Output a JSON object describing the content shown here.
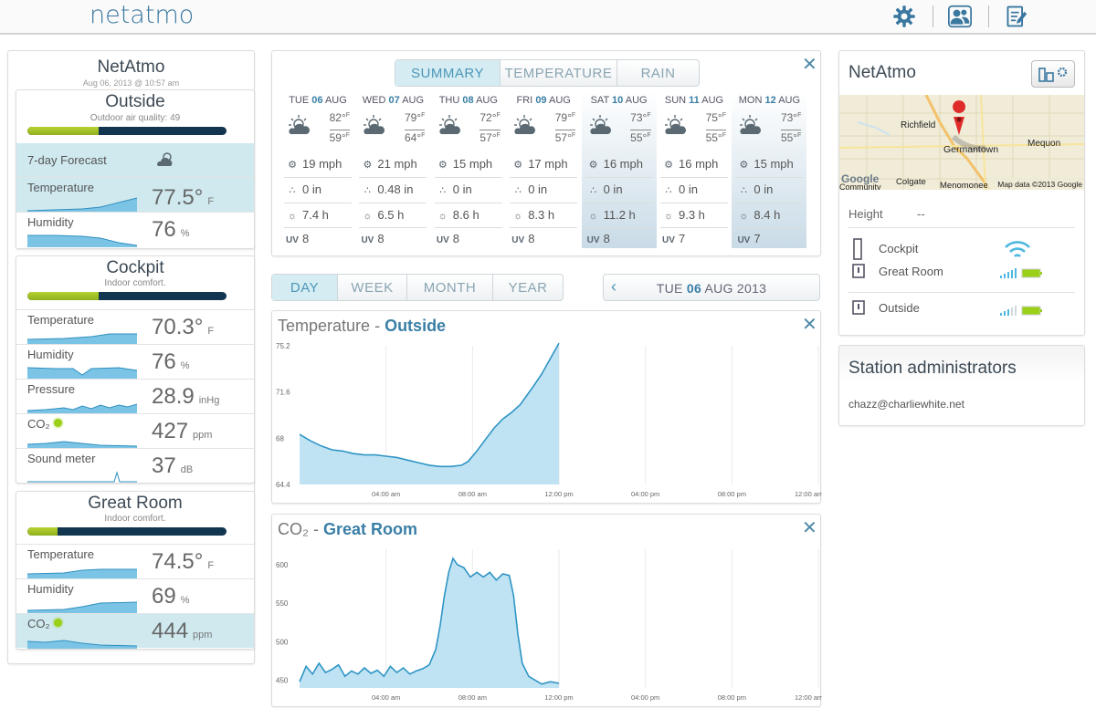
{
  "app": {
    "logo": "netatmo"
  },
  "toolbar": {
    "icons": [
      "gear-icon",
      "users-icon",
      "edit-icon"
    ]
  },
  "station": {
    "name": "NetAtmo",
    "timestamp": "Aug 06, 2013 @ 10:57 am"
  },
  "outside": {
    "title": "Outside",
    "subtitle": "Outdoor air quality: 49",
    "quality_fraction": 0.36,
    "forecast_label": "7-day Forecast",
    "rows": [
      {
        "label": "Temperature",
        "value": "77.5°",
        "unit": "F"
      },
      {
        "label": "Humidity",
        "value": "76",
        "unit": "%"
      }
    ]
  },
  "cockpit": {
    "title": "Cockpit",
    "subtitle": "Indoor comfort.",
    "quality_fraction": 0.36,
    "rows": [
      {
        "label": "Temperature",
        "value": "70.3°",
        "unit": "F"
      },
      {
        "label": "Humidity",
        "value": "76",
        "unit": "%"
      },
      {
        "label": "Pressure",
        "value": "28.9",
        "unit": "inHg"
      },
      {
        "label": "CO₂",
        "value": "427",
        "unit": "ppm"
      },
      {
        "label": "Sound meter",
        "value": "37",
        "unit": "dB"
      }
    ]
  },
  "greatroom": {
    "title": "Great Room",
    "subtitle": "Indoor comfort.",
    "quality_fraction": 0.15,
    "rows": [
      {
        "label": "Temperature",
        "value": "74.5°",
        "unit": "F"
      },
      {
        "label": "Humidity",
        "value": "69",
        "unit": "%"
      },
      {
        "label": "CO₂",
        "value": "444",
        "unit": "ppm"
      }
    ]
  },
  "forecast": {
    "tabs": [
      "SUMMARY",
      "TEMPERATURE",
      "RAIN"
    ],
    "active_tab": "SUMMARY",
    "days": [
      {
        "dow": "TUE",
        "num": "06",
        "mon": "AUG",
        "hi": "82°",
        "lo": "59°",
        "unit": "F",
        "wind": "19 mph",
        "rain": "0 in",
        "sun": "7.4 h",
        "uv": "8",
        "weekend": false
      },
      {
        "dow": "WED",
        "num": "07",
        "mon": "AUG",
        "hi": "79°",
        "lo": "64°",
        "unit": "F",
        "wind": "21 mph",
        "rain": "0.48 in",
        "sun": "6.5 h",
        "uv": "8",
        "weekend": false
      },
      {
        "dow": "THU",
        "num": "08",
        "mon": "AUG",
        "hi": "72°",
        "lo": "57°",
        "unit": "F",
        "wind": "15 mph",
        "rain": "0 in",
        "sun": "8.6 h",
        "uv": "8",
        "weekend": false
      },
      {
        "dow": "FRI",
        "num": "09",
        "mon": "AUG",
        "hi": "79°",
        "lo": "57°",
        "unit": "F",
        "wind": "17 mph",
        "rain": "0 in",
        "sun": "8.3 h",
        "uv": "8",
        "weekend": false
      },
      {
        "dow": "SAT",
        "num": "10",
        "mon": "AUG",
        "hi": "73°",
        "lo": "55°",
        "unit": "F",
        "wind": "16 mph",
        "rain": "0 in",
        "sun": "11.2 h",
        "uv": "8",
        "weekend": true
      },
      {
        "dow": "SUN",
        "num": "11",
        "mon": "AUG",
        "hi": "75°",
        "lo": "55°",
        "unit": "F",
        "wind": "16 mph",
        "rain": "0 in",
        "sun": "9.3 h",
        "uv": "7",
        "weekend": false
      },
      {
        "dow": "MON",
        "num": "12",
        "mon": "AUG",
        "hi": "73°",
        "lo": "55°",
        "unit": "F",
        "wind": "15 mph",
        "rain": "0 in",
        "sun": "8.4 h",
        "uv": "7",
        "weekend": true
      }
    ]
  },
  "range": {
    "tabs": [
      "DAY",
      "WEEK",
      "MONTH",
      "YEAR"
    ],
    "active_tab": "DAY"
  },
  "date": {
    "prefix": "TUE",
    "day": "06",
    "suffix": "AUG 2013"
  },
  "chart_data": [
    {
      "type": "area",
      "title": "Temperature - Outside",
      "title_a": "Temperature",
      "title_b": "Outside",
      "x_ticks": [
        "04:00 am",
        "08:00 am",
        "12:00 pm",
        "04:00 pm",
        "08:00 pm",
        "12:00 am"
      ],
      "y_ticks": [
        "64.4",
        "68",
        "71.6",
        "75.2"
      ],
      "ylim": [
        64.4,
        75.2
      ],
      "x_range_hours": [
        0,
        24
      ],
      "grid": true,
      "series": [
        {
          "x": [
            0,
            0.5,
            1,
            1.5,
            2,
            2.5,
            3,
            3.5,
            4,
            4.5,
            5,
            5.5,
            6,
            6.5,
            7,
            7.5,
            7.8,
            8.2,
            8.6,
            9,
            9.4,
            9.8,
            10.2,
            10.5,
            10.8,
            11.2,
            11.6,
            12
          ],
          "y": [
            68.3,
            67.8,
            67.4,
            67.1,
            67.0,
            66.8,
            66.7,
            66.7,
            66.6,
            66.5,
            66.3,
            66.1,
            65.9,
            65.8,
            65.8,
            65.9,
            66.2,
            67.0,
            67.9,
            68.8,
            69.5,
            70.0,
            70.6,
            71.3,
            72.0,
            73.0,
            74.2,
            75.4
          ]
        }
      ]
    },
    {
      "type": "area",
      "title": "CO₂ - Great Room",
      "title_a": "CO₂",
      "title_b": "Great Room",
      "x_ticks": [
        "04:00 am",
        "08:00 am",
        "12:00 pm",
        "04:00 pm",
        "08:00 pm",
        "12:00 am"
      ],
      "y_ticks": [
        "450",
        "500",
        "550",
        "600"
      ],
      "ylim": [
        440,
        620
      ],
      "x_range_hours": [
        0,
        24
      ],
      "grid": true,
      "series": [
        {
          "x": [
            0,
            0.3,
            0.6,
            0.9,
            1.2,
            1.5,
            1.8,
            2.1,
            2.4,
            2.7,
            3,
            3.3,
            3.6,
            3.9,
            4.2,
            4.5,
            4.8,
            5.1,
            5.4,
            5.7,
            6,
            6.3,
            6.5,
            6.7,
            6.9,
            7.1,
            7.3,
            7.6,
            7.9,
            8.2,
            8.5,
            8.8,
            9.1,
            9.4,
            9.7,
            9.9,
            10.1,
            10.3,
            10.6,
            10.9,
            11.2,
            11.6,
            12
          ],
          "y": [
            448,
            468,
            458,
            472,
            460,
            464,
            470,
            455,
            462,
            458,
            466,
            459,
            463,
            455,
            468,
            460,
            466,
            458,
            462,
            465,
            470,
            490,
            520,
            560,
            590,
            608,
            600,
            596,
            584,
            590,
            584,
            590,
            580,
            588,
            586,
            560,
            510,
            472,
            455,
            450,
            445,
            448,
            446
          ]
        }
      ]
    }
  ],
  "right": {
    "station_name": "NetAtmo",
    "map": {
      "places": [
        "Richfield",
        "Germantown",
        "Mequon",
        "Colgate",
        "Menomonee",
        "Community"
      ],
      "credit": "Map data ©2013 Google",
      "logo": "Google"
    },
    "height_label": "Height",
    "height_value": "--",
    "modules": [
      {
        "name": "Cockpit",
        "signal": "wifi"
      },
      {
        "name": "Great Room",
        "signal": "radio"
      },
      {
        "name": "Outside",
        "signal": "radio"
      }
    ],
    "admins_title": "Station administrators",
    "admin_email": "chazz@charliewhite.net"
  }
}
